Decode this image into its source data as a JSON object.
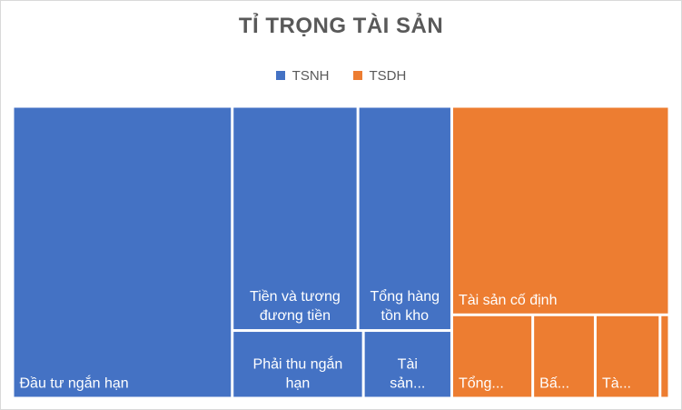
{
  "colors": {
    "TSNH": "#4472c4",
    "TSDH": "#ed7d31",
    "label_text": "#ffffff",
    "tile_border": "#ffffff"
  },
  "chart_data": {
    "type": "treemap",
    "title": "TỈ TRỌNG TÀI SẢN",
    "legend": {
      "position": "top",
      "entries": [
        "TSNH",
        "TSDH"
      ]
    },
    "groups": [
      {
        "name": "TSNH",
        "items": [
          {
            "label": "Đầu tư ngắn hạn",
            "value": 33.2
          },
          {
            "label": "Tiền và tương đương tiền",
            "value": 14.6
          },
          {
            "label": "Tổng hàng tồn kho",
            "value": 10.9
          },
          {
            "label": "Phải thu ngắn hạn",
            "value": 4.6
          },
          {
            "label": "Tài sản...",
            "value": 3.1
          }
        ]
      },
      {
        "name": "TSDH",
        "items": [
          {
            "label": "Tài sản cố định",
            "value": 23.5
          },
          {
            "label": "Tổng...",
            "value": 3.5
          },
          {
            "label": "Bấ...",
            "value": 2.7
          },
          {
            "label": "Tà...",
            "value": 2.8
          },
          {
            "label": "",
            "value": 0.4
          }
        ]
      }
    ]
  }
}
